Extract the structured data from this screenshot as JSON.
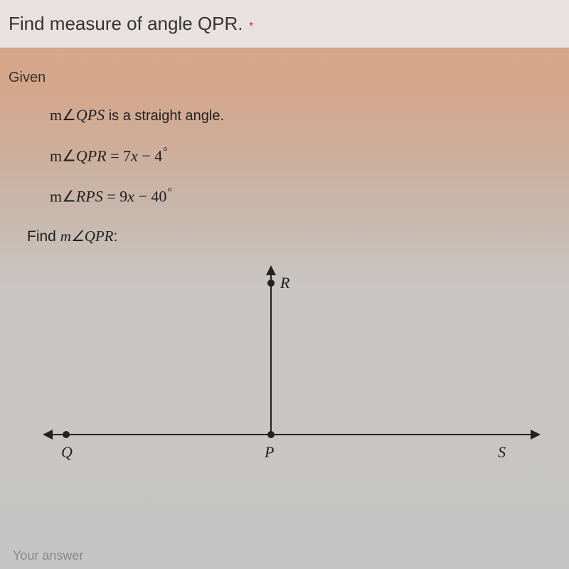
{
  "question": {
    "title": "Find measure of angle QPR.",
    "required_marker": "*"
  },
  "given": {
    "label": "Given",
    "lines": [
      {
        "prefix": "m∠",
        "var": "QPS",
        "suffix": " is a straight angle."
      },
      {
        "prefix": "m∠",
        "var": "QPR",
        "expr": " = 7",
        "xvar": "x",
        "rest": " − 4",
        "degree": "°"
      },
      {
        "prefix": "m∠",
        "var": "RPS",
        "expr": " = 9",
        "xvar": "x",
        "rest": " − 40",
        "degree": "°"
      }
    ],
    "find": {
      "label": "Find ",
      "prefix": "m∠",
      "var": "QPR",
      "colon": ":"
    }
  },
  "diagram": {
    "points": {
      "Q": "Q",
      "P": "P",
      "R": "R",
      "S": "S"
    },
    "colors": {
      "line": "#222222",
      "label": "#222222"
    }
  },
  "answer": {
    "placeholder": "Your answer"
  }
}
